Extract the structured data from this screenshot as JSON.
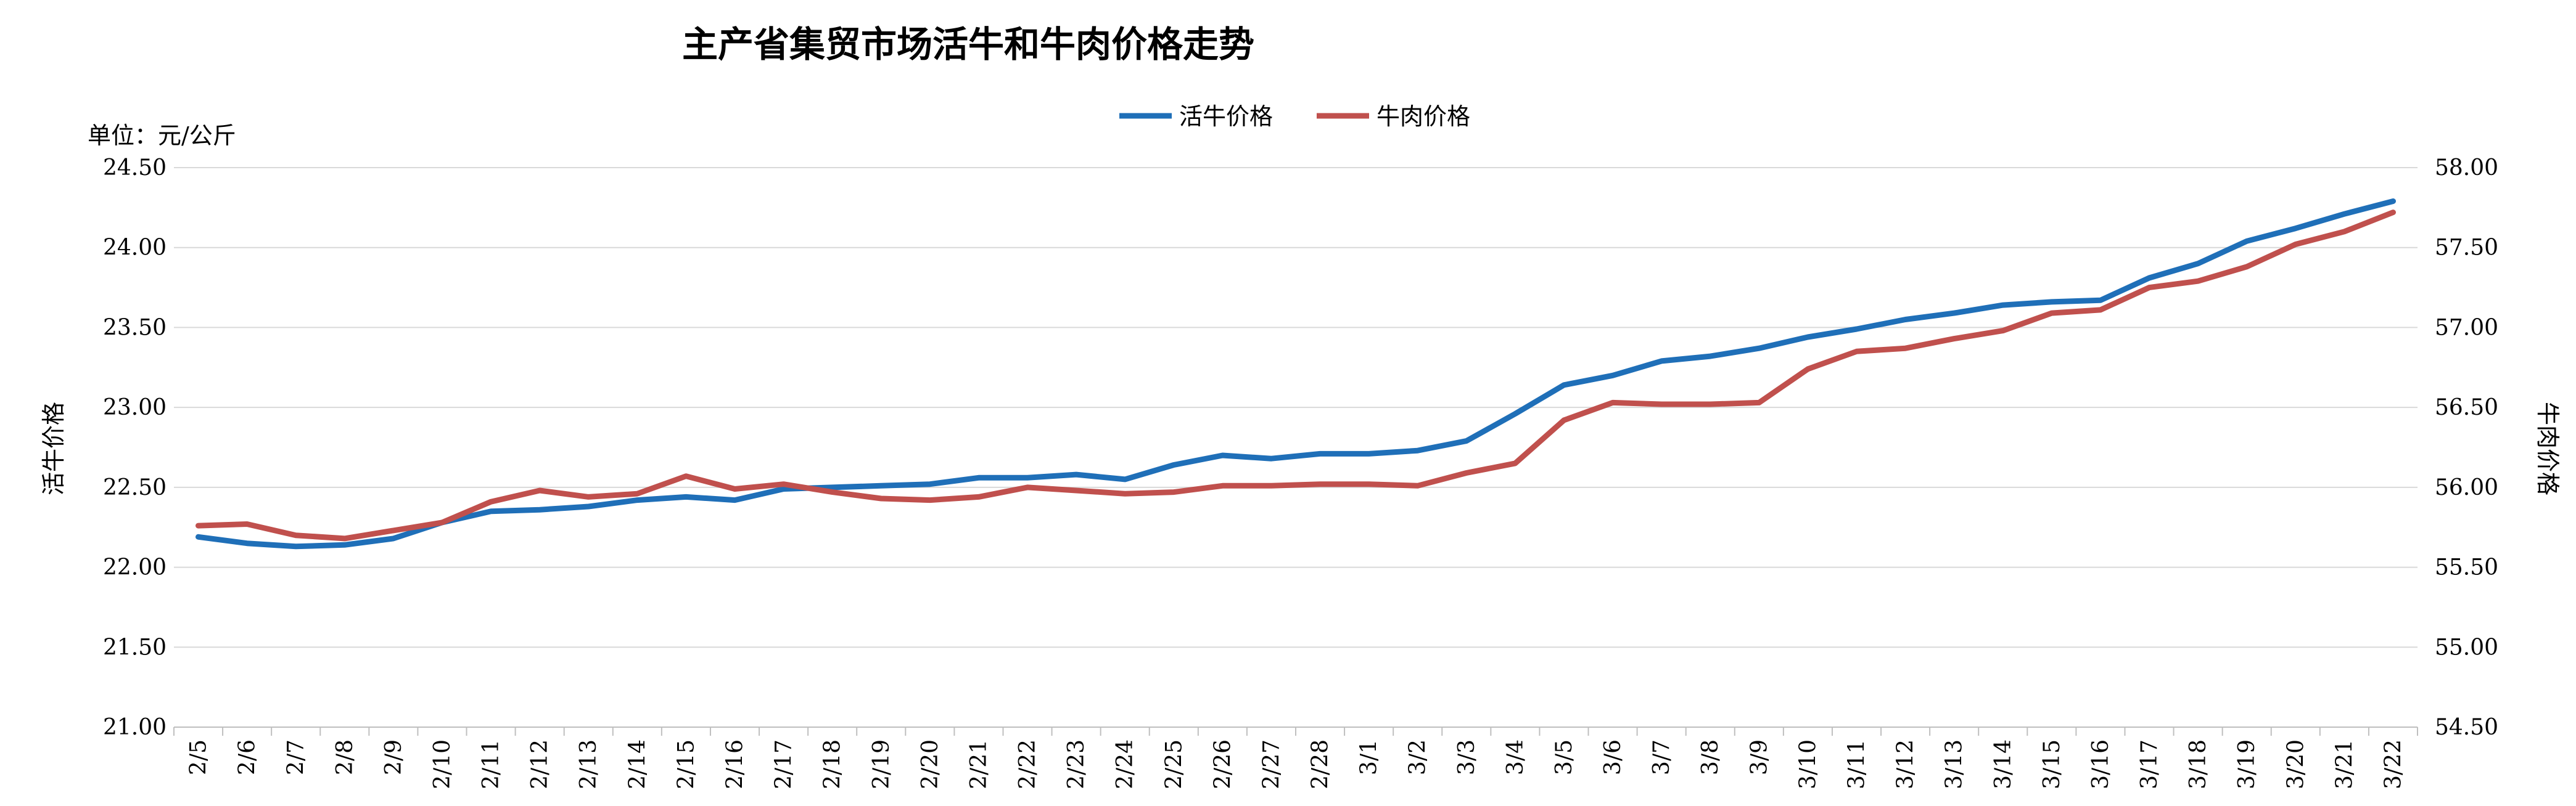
{
  "chart_data": {
    "type": "line",
    "title": "主产省集贸市场活牛和牛肉价格走势",
    "unit_label": "单位：元/公斤",
    "ylabel_left": "活牛价格",
    "ylabel_right": "牛肉价格",
    "legend_position": "top-center",
    "grid": true,
    "ylim_left": [
      21.0,
      24.5
    ],
    "ylim_right": [
      54.5,
      58.0
    ],
    "yticks_left": [
      "21.00",
      "21.50",
      "22.00",
      "22.50",
      "23.00",
      "23.50",
      "24.00",
      "24.50"
    ],
    "yticks_right": [
      "54.50",
      "55.00",
      "55.50",
      "56.00",
      "56.50",
      "57.00",
      "57.50",
      "58.00"
    ],
    "categories": [
      "2/5",
      "2/6",
      "2/7",
      "2/8",
      "2/9",
      "2/10",
      "2/11",
      "2/12",
      "2/13",
      "2/14",
      "2/15",
      "2/16",
      "2/17",
      "2/18",
      "2/19",
      "2/20",
      "2/21",
      "2/22",
      "2/23",
      "2/24",
      "2/25",
      "2/26",
      "2/27",
      "2/28",
      "3/1",
      "3/2",
      "3/3",
      "3/4",
      "3/5",
      "3/6",
      "3/7",
      "3/8",
      "3/9",
      "3/10",
      "3/11",
      "3/12",
      "3/13",
      "3/14",
      "3/15",
      "3/16",
      "3/17",
      "3/18",
      "3/19",
      "3/20",
      "3/21",
      "3/22"
    ],
    "series": [
      {
        "name": "活牛价格",
        "axis": "left",
        "color": "#1F6FB8",
        "values": [
          22.19,
          22.15,
          22.13,
          22.14,
          22.18,
          22.28,
          22.35,
          22.36,
          22.38,
          22.42,
          22.44,
          22.42,
          22.49,
          22.5,
          22.51,
          22.52,
          22.56,
          22.56,
          22.58,
          22.55,
          22.64,
          22.7,
          22.68,
          22.71,
          22.71,
          22.73,
          22.79,
          22.96,
          23.14,
          23.2,
          23.29,
          23.32,
          23.37,
          23.44,
          23.49,
          23.55,
          23.59,
          23.64,
          23.66,
          23.67,
          23.81,
          23.9,
          24.04,
          24.12,
          24.21,
          24.29
        ]
      },
      {
        "name": "牛肉价格",
        "axis": "right",
        "color": "#C0504D",
        "values": [
          55.76,
          55.77,
          55.7,
          55.68,
          55.73,
          55.78,
          55.91,
          55.98,
          55.94,
          55.96,
          56.07,
          55.99,
          56.02,
          55.97,
          55.93,
          55.92,
          55.94,
          56.0,
          55.98,
          55.96,
          55.97,
          56.01,
          56.01,
          56.02,
          56.02,
          56.01,
          56.09,
          56.15,
          56.42,
          56.53,
          56.52,
          56.52,
          56.53,
          56.74,
          56.85,
          56.87,
          56.93,
          56.98,
          57.09,
          57.11,
          57.25,
          57.29,
          57.38,
          57.52,
          57.6,
          57.72
        ]
      }
    ]
  }
}
